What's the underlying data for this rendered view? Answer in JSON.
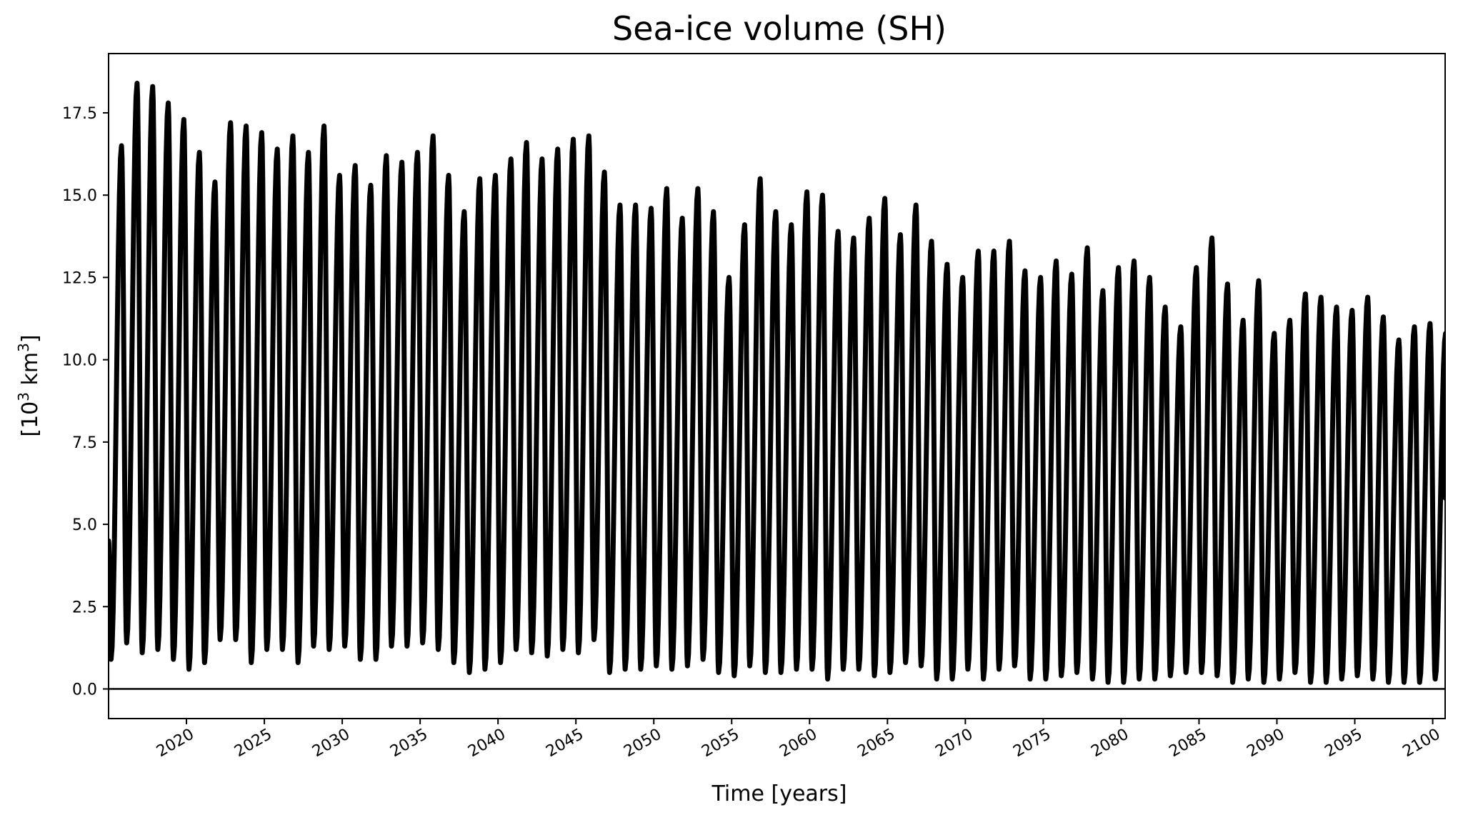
{
  "chart_data": {
    "type": "line",
    "title": "Sea-ice volume (SH)",
    "xlabel": "Time [years]",
    "ylabel": "[10³ km³]",
    "ylabel_parts": {
      "open": "[10",
      "exp1": "3",
      "mid": " km",
      "exp2": "3",
      "close": "]"
    },
    "xlim": [
      2015.0,
      2100.8
    ],
    "ylim": [
      -0.9,
      19.3
    ],
    "x_ticks": [
      2020,
      2025,
      2030,
      2035,
      2040,
      2045,
      2050,
      2055,
      2060,
      2065,
      2070,
      2075,
      2080,
      2085,
      2090,
      2095,
      2100
    ],
    "x_tick_labels": [
      "2020",
      "2025",
      "2030",
      "2035",
      "2040",
      "2045",
      "2050",
      "2055",
      "2060",
      "2065",
      "2070",
      "2075",
      "2080",
      "2085",
      "2090",
      "2095",
      "2100"
    ],
    "y_ticks": [
      0.0,
      2.5,
      5.0,
      7.5,
      10.0,
      12.5,
      15.0,
      17.5
    ],
    "y_tick_labels": [
      "0.0",
      "2.5",
      "5.0",
      "7.5",
      "10.0",
      "12.5",
      "15.0",
      "17.5"
    ],
    "reference_line": {
      "y": 0.0,
      "color": "#000000"
    },
    "grid": false,
    "series": [
      {
        "color": "#000000",
        "cycle_start": [
          2015.0,
          2015.83
        ],
        "start_value": 4.5,
        "end_value": 5.8,
        "annual_maxima": [
          16.5,
          18.4,
          18.3,
          17.8,
          17.3,
          16.3,
          15.4,
          17.2,
          17.1,
          16.9,
          16.4,
          16.8,
          16.3,
          17.1,
          15.6,
          15.9,
          15.3,
          16.2,
          16.0,
          16.3,
          16.8,
          15.6,
          14.5,
          15.5,
          15.6,
          16.1,
          16.6,
          16.1,
          16.4,
          16.7,
          16.8,
          15.7,
          14.7,
          14.7,
          14.6,
          15.2,
          14.3,
          15.2,
          14.5,
          12.5,
          14.1,
          15.5,
          14.5,
          14.1,
          15.1,
          15.0,
          13.9,
          13.7,
          14.3,
          14.9,
          13.8,
          14.7,
          13.6,
          12.9,
          12.5,
          13.3,
          13.3,
          13.6,
          12.7,
          12.5,
          13.0,
          12.6,
          13.4,
          12.1,
          12.8,
          13.0,
          12.5,
          11.6,
          11.0,
          12.8,
          13.7,
          12.3,
          11.2,
          12.4,
          10.8,
          11.2,
          12.0,
          11.9,
          11.6,
          11.5,
          11.9,
          11.3,
          10.6,
          11.0,
          11.1,
          10.8
        ],
        "annual_minima": [
          0.9,
          1.4,
          1.1,
          1.2,
          0.9,
          0.6,
          0.8,
          1.5,
          1.5,
          0.8,
          1.2,
          1.2,
          0.8,
          1.3,
          1.2,
          1.3,
          0.9,
          0.9,
          1.3,
          1.3,
          1.4,
          1.2,
          0.8,
          0.5,
          0.6,
          0.8,
          1.2,
          1.1,
          1.0,
          1.2,
          1.1,
          1.5,
          0.5,
          0.6,
          0.6,
          0.7,
          0.6,
          0.7,
          0.9,
          0.5,
          0.4,
          0.7,
          0.5,
          0.5,
          0.6,
          0.6,
          0.3,
          0.6,
          0.6,
          0.4,
          0.5,
          0.8,
          0.7,
          0.3,
          0.3,
          0.6,
          0.3,
          0.6,
          0.7,
          0.3,
          0.3,
          0.4,
          0.5,
          0.3,
          0.2,
          0.2,
          0.3,
          0.3,
          0.4,
          0.5,
          0.5,
          0.4,
          0.2,
          0.3,
          0.2,
          0.3,
          0.5,
          0.2,
          0.2,
          0.3,
          0.4,
          0.3,
          0.2,
          0.2,
          0.2,
          0.3
        ]
      }
    ]
  }
}
